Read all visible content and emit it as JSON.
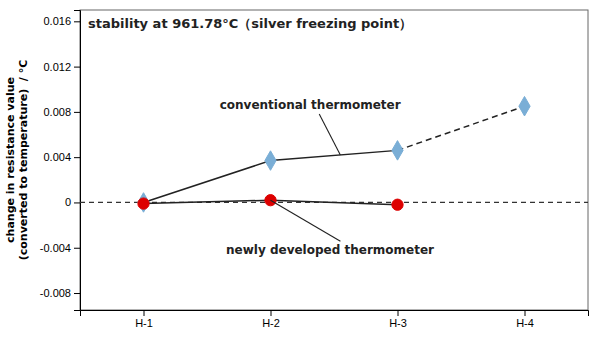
{
  "chart_data": {
    "type": "line",
    "title": "stability at 961.78°C（silver freezing point）",
    "ylabel": [
      "change in resistance value",
      "(converted to temperature)  / °C"
    ],
    "categories": [
      "H-1",
      "H-2",
      "H-3",
      "H-4"
    ],
    "series": [
      {
        "name": "conventional thermometer",
        "color": "#7aaed6",
        "marker": "diamond",
        "line_style": "solid-then-dashed",
        "values": [
          0.0,
          0.0037,
          0.0046,
          0.0085
        ]
      },
      {
        "name": "newly developed thermometer",
        "color": "#dd0000",
        "marker": "circle",
        "line_style": "solid",
        "values": [
          -0.0001,
          0.0002,
          -0.0002,
          null
        ]
      }
    ],
    "ylim": [
      -0.0095,
      0.017
    ],
    "yticks": [
      -0.008,
      -0.004,
      0,
      0.004,
      0.008,
      0.012,
      0.016
    ],
    "grid": false
  }
}
